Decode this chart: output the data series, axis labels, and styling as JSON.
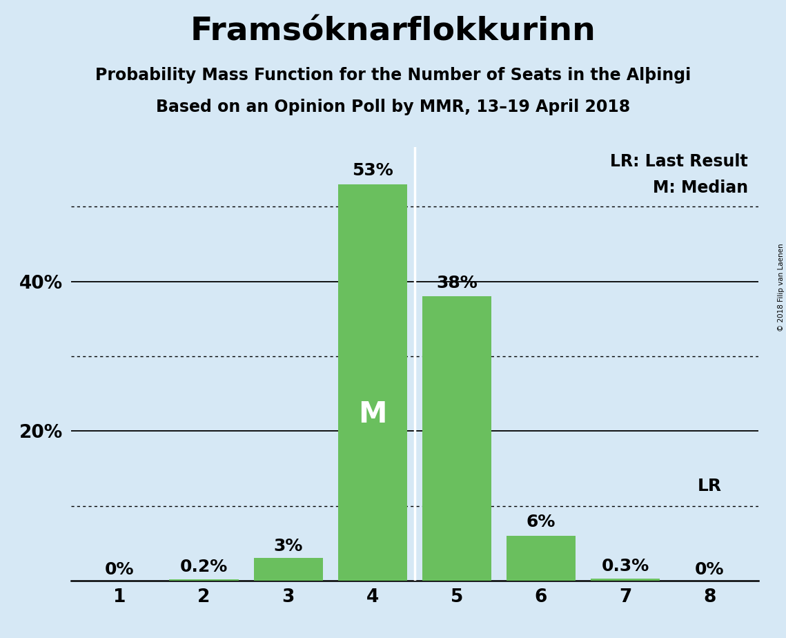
{
  "title": "Framsóknarflokkurinn",
  "subtitle1": "Probability Mass Function for the Number of Seats in the Alþingi",
  "subtitle2": "Based on an Opinion Poll by MMR, 13–19 April 2018",
  "categories": [
    1,
    2,
    3,
    4,
    5,
    6,
    7,
    8
  ],
  "values": [
    0.0,
    0.2,
    3.0,
    53.0,
    38.0,
    6.0,
    0.3,
    0.0
  ],
  "labels": [
    "0%",
    "0.2%",
    "3%",
    "53%",
    "38%",
    "6%",
    "0.3%",
    "0%"
  ],
  "bar_color": "#6abf5e",
  "background_color": "#d6e8f5",
  "median_bar_idx": 3,
  "lr_bar_idx": 7,
  "ylim": [
    0,
    58
  ],
  "solid_gridlines": [
    20,
    40
  ],
  "dotted_gridlines": [
    10,
    30,
    50
  ],
  "copyright": "© 2018 Filip van Laenen",
  "legend_lr": "LR: Last Result",
  "legend_m": "M: Median",
  "title_fontsize": 34,
  "subtitle_fontsize": 17,
  "axis_fontsize": 19,
  "label_fontsize": 18,
  "legend_fontsize": 17
}
